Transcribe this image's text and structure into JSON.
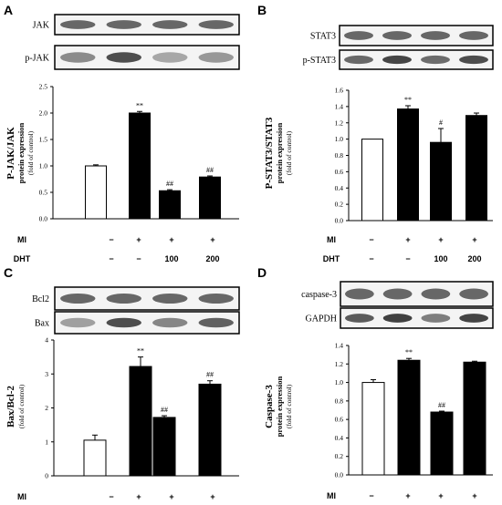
{
  "conditions": {
    "mi_label": "MI",
    "dht_label": "DHT",
    "mi": [
      "−",
      "+",
      "+",
      "+"
    ],
    "dht": [
      "−",
      "−",
      "100",
      "200"
    ]
  },
  "chart_data": [
    {
      "type": "bar",
      "panel": "A",
      "blot_labels": [
        "JAK",
        "p-JAK"
      ],
      "ylabel": "P-JAK/JAK",
      "ylabel_sub": "protein expression",
      "ylabel_unit": "(fold of control)",
      "ylim": [
        0,
        2.5
      ],
      "yticks": [
        "0.0",
        "0.5",
        "1.0",
        "1.5",
        "2.0",
        "2.5"
      ],
      "values": [
        1.0,
        2.0,
        0.53,
        0.79
      ],
      "errors": [
        0.02,
        0.03,
        0.02,
        0.02
      ],
      "significance": [
        "",
        "**",
        "##",
        "##"
      ]
    },
    {
      "type": "bar",
      "panel": "B",
      "blot_labels": [
        "STAT3",
        "p-STAT3"
      ],
      "ylabel": "P-STAT3/STAT3",
      "ylabel_sub": "protein expression",
      "ylabel_unit": "(fold of control)",
      "ylim": [
        0,
        1.6
      ],
      "yticks": [
        "0.0",
        "0.2",
        "0.4",
        "0.6",
        "0.8",
        "1.0",
        "1.2",
        "1.4",
        "1.6"
      ],
      "values": [
        1.0,
        1.37,
        0.96,
        1.29
      ],
      "errors": [
        0.0,
        0.04,
        0.17,
        0.03
      ],
      "significance": [
        "",
        "**",
        "#",
        ""
      ]
    },
    {
      "type": "bar",
      "panel": "C",
      "blot_labels": [
        "Bcl2",
        "Bax"
      ],
      "ylabel": "Bax/Bcl-2",
      "ylabel_sub": "",
      "ylabel_unit": "(fold of control)",
      "ylim": [
        0,
        4
      ],
      "yticks": [
        "0",
        "1",
        "2",
        "3",
        "4"
      ],
      "values": [
        1.05,
        3.22,
        1.72,
        2.7
      ],
      "errors": [
        0.15,
        0.28,
        0.05,
        0.1
      ],
      "significance": [
        "",
        "**",
        "##",
        "##"
      ]
    },
    {
      "type": "bar",
      "panel": "D",
      "blot_labels": [
        "caspase-3",
        "GAPDH"
      ],
      "ylabel": "Caspase-3",
      "ylabel_sub": "protein expression",
      "ylabel_unit": "(fold of control)",
      "ylim": [
        0,
        1.4
      ],
      "yticks": [
        "0.0",
        "0.2",
        "0.4",
        "0.6",
        "0.8",
        "1.0",
        "1.2",
        "1.4"
      ],
      "values": [
        1.0,
        1.24,
        0.68,
        1.22
      ],
      "errors": [
        0.03,
        0.02,
        0.01,
        0.01
      ],
      "significance": [
        "",
        "**",
        "##",
        ""
      ]
    }
  ]
}
